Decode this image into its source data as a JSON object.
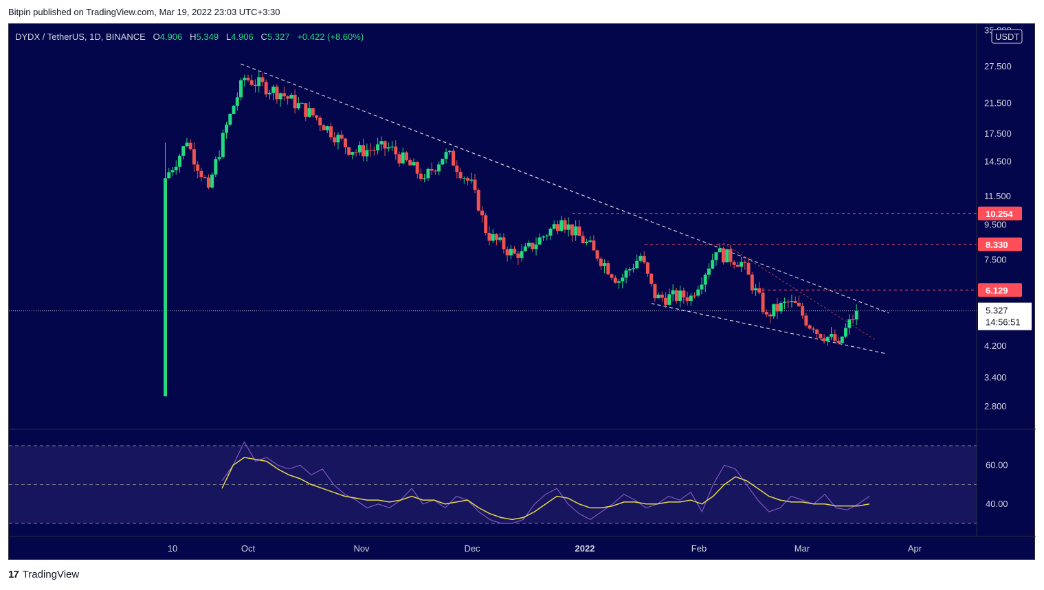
{
  "header": {
    "published_by": "Bitpin published on TradingView.com, Mar 19, 2022 23:03 UTC+3:30"
  },
  "legend": {
    "symbol": "DYDX / TetherUS, 1D, BINANCE",
    "open_label": "O",
    "open": "4.906",
    "high_label": "H",
    "high": "5.349",
    "low_label": "L",
    "low": "4.906",
    "close_label": "C",
    "close": "5.327",
    "change": "+0.422 (+8.60%)"
  },
  "footer": {
    "brand": "TradingView",
    "logo_text": "17"
  },
  "colors": {
    "background": "#03064a",
    "up": "#26d97f",
    "down": "#ef5350",
    "rsi_line": "#7e57c2",
    "rsi_ma": "#e8d84a",
    "trendline": "#d1d4dc",
    "level": "#ff4d5a"
  },
  "chart_data": [
    {
      "type": "candlestick",
      "symbol": "DYDX / TetherUS",
      "interval": "1D",
      "exchange": "BINANCE",
      "y_scale": "log",
      "currency_badge": "USDT",
      "x_tick_labels": [
        "10",
        "Oct",
        "Nov",
        "Dec",
        "2022",
        "Feb",
        "Mar",
        "Apr"
      ],
      "y_tick_labels": [
        "35.000",
        "27.500",
        "21.500",
        "17.500",
        "14.500",
        "11.500",
        "9.500",
        "7.500",
        "4.200",
        "3.400",
        "2.800"
      ],
      "price_levels": [
        {
          "label": "10.254",
          "value": 10.254
        },
        {
          "label": "8.330",
          "value": 8.33
        },
        {
          "label": "6.129",
          "value": 6.129
        }
      ],
      "last_price": {
        "label": "5.327",
        "countdown": "14:56:51",
        "value": 5.327
      },
      "trendlines": [
        {
          "from": [
            "2021-09-29",
            28.0
          ],
          "to": [
            "2022-03-28",
            5.25
          ]
        },
        {
          "from": [
            "2022-01-21",
            5.6
          ],
          "to": [
            "2022-03-27",
            4.0
          ]
        }
      ],
      "series_approx_close": [
        {
          "date": "2021-09-08",
          "close": 13.0
        },
        {
          "date": "2021-09-14",
          "close": 16.5
        },
        {
          "date": "2021-09-20",
          "close": 12.2
        },
        {
          "date": "2021-09-26",
          "close": 20.0
        },
        {
          "date": "2021-09-30",
          "close": 25.5
        },
        {
          "date": "2021-10-10",
          "close": 23.0
        },
        {
          "date": "2021-10-20",
          "close": 19.5
        },
        {
          "date": "2021-10-30",
          "close": 15.5
        },
        {
          "date": "2021-11-09",
          "close": 16.0
        },
        {
          "date": "2021-11-19",
          "close": 13.0
        },
        {
          "date": "2021-11-25",
          "close": 15.5
        },
        {
          "date": "2021-12-03",
          "close": 12.0
        },
        {
          "date": "2021-12-06",
          "close": 9.0
        },
        {
          "date": "2021-12-15",
          "close": 7.6
        },
        {
          "date": "2021-12-27",
          "close": 9.8
        },
        {
          "date": "2022-01-05",
          "close": 8.0
        },
        {
          "date": "2022-01-12",
          "close": 6.5
        },
        {
          "date": "2022-01-18",
          "close": 7.7
        },
        {
          "date": "2022-01-22",
          "close": 5.8
        },
        {
          "date": "2022-02-01",
          "close": 5.9
        },
        {
          "date": "2022-02-08",
          "close": 7.9
        },
        {
          "date": "2022-02-15",
          "close": 7.4
        },
        {
          "date": "2022-02-22",
          "close": 5.2
        },
        {
          "date": "2022-03-01",
          "close": 5.7
        },
        {
          "date": "2022-03-07",
          "close": 4.7
        },
        {
          "date": "2022-03-14",
          "close": 4.3
        },
        {
          "date": "2022-03-19",
          "close": 5.327
        }
      ]
    },
    {
      "type": "line",
      "name": "RSI",
      "y_tick_labels": [
        "60.00",
        "40.00"
      ],
      "bands": [
        70,
        50,
        30
      ],
      "series": [
        {
          "role": "rsi",
          "values": [
            52,
            60,
            72,
            62,
            64,
            60,
            58,
            60,
            55,
            58,
            50,
            45,
            42,
            38,
            40,
            38,
            42,
            48,
            40,
            42,
            38,
            44,
            42,
            36,
            32,
            30,
            30,
            32,
            40,
            45,
            48,
            40,
            35,
            32,
            36,
            40,
            45,
            42,
            38,
            40,
            44,
            42,
            46,
            36,
            50,
            60,
            58,
            50,
            42,
            36,
            38,
            44,
            42,
            40,
            45,
            38,
            37,
            40,
            44
          ]
        },
        {
          "role": "rsi-ma",
          "values": [
            48,
            60,
            64,
            63,
            62,
            58,
            55,
            53,
            50,
            48,
            46,
            44,
            43,
            42,
            42,
            41,
            42,
            44,
            42,
            42,
            40,
            41,
            42,
            38,
            35,
            33,
            32,
            33,
            36,
            40,
            44,
            43,
            40,
            38,
            38,
            39,
            41,
            41,
            40,
            40,
            41,
            41,
            42,
            40,
            44,
            50,
            54,
            52,
            48,
            44,
            42,
            41,
            41,
            40,
            40,
            39,
            39,
            39,
            40
          ]
        }
      ]
    }
  ]
}
